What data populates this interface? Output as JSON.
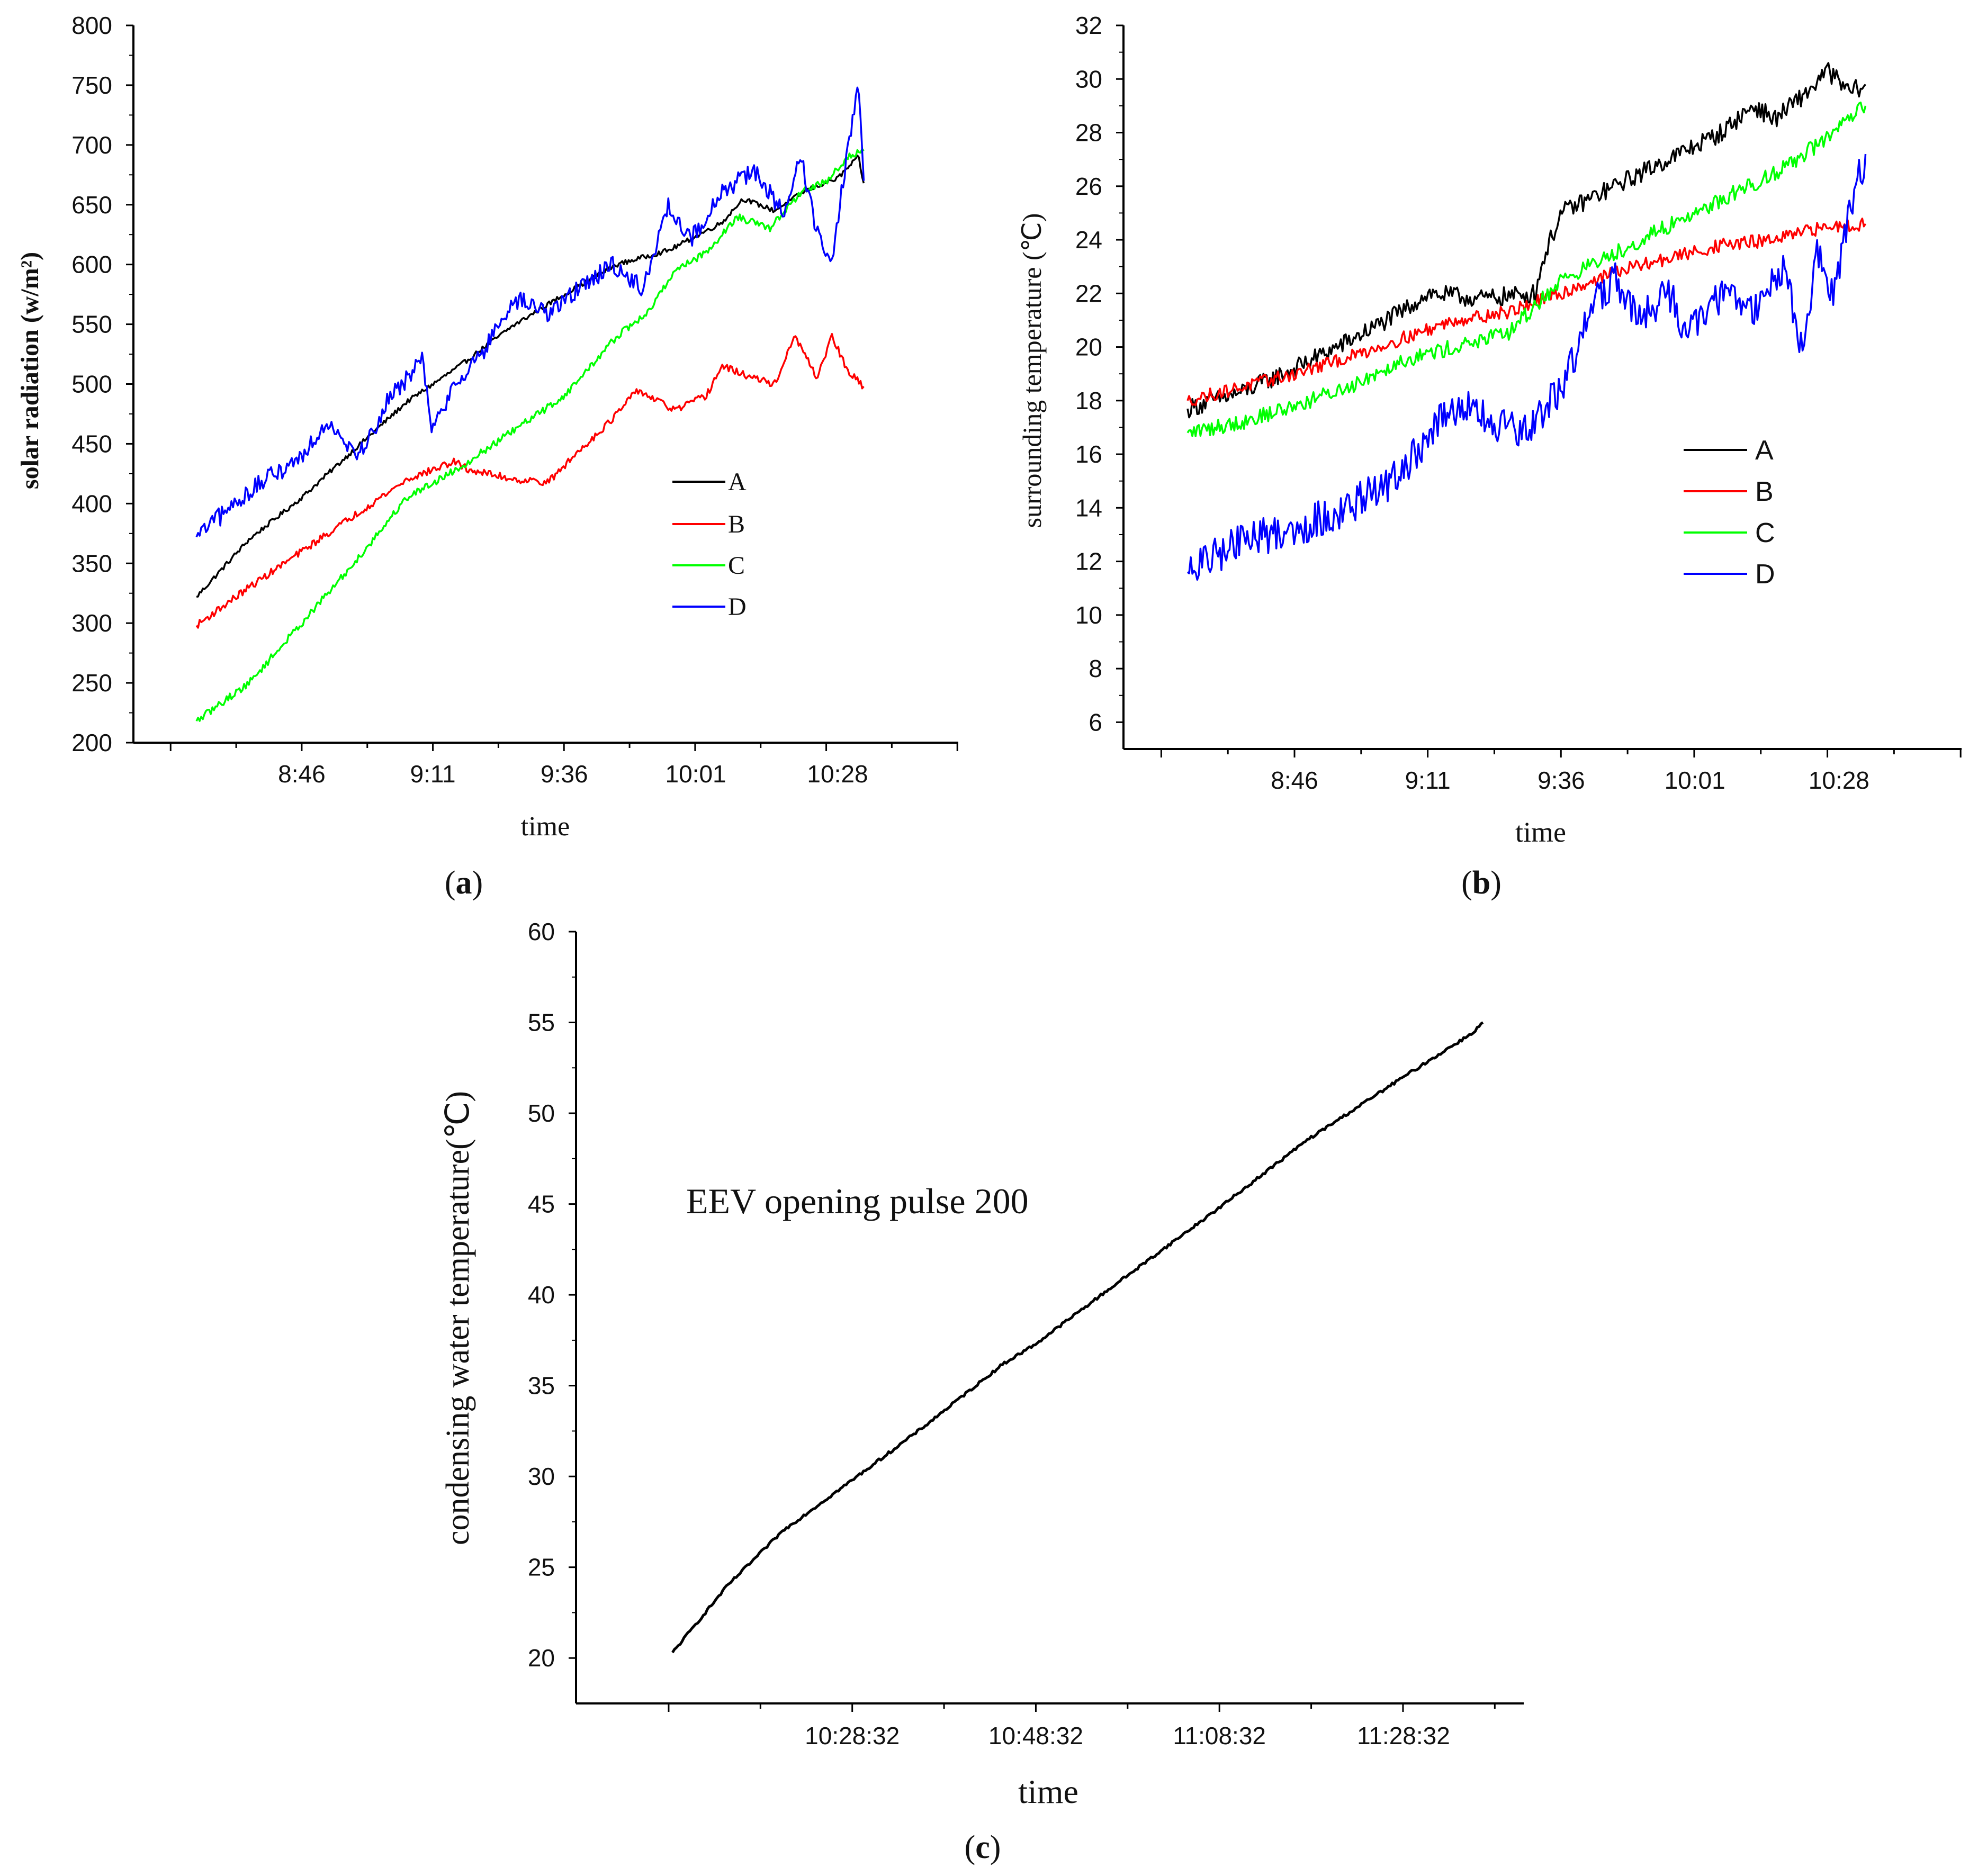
{
  "chart_data": [
    {
      "panel": "(a)",
      "type": "line",
      "xlabel": "time",
      "ylabel": "solar radiation (w/m²)",
      "ylim": [
        200,
        800
      ],
      "yticks": [
        200,
        250,
        300,
        350,
        400,
        450,
        500,
        550,
        600,
        650,
        700,
        750,
        800
      ],
      "xlim": [
        8.233,
        10.85
      ],
      "xtick_labels": [
        {
          "t": 8.767,
          "label": "8:46"
        },
        {
          "t": 9.183,
          "label": "9:11"
        },
        {
          "t": 9.6,
          "label": "9:36"
        },
        {
          "t": 10.017,
          "label": "10:01"
        },
        {
          "t": 10.467,
          "label": "10:28"
        }
      ],
      "legend": [
        "A",
        "B",
        "C",
        "D"
      ],
      "legend_position": "right-middle",
      "series": [
        {
          "name": "A",
          "color": "#000000",
          "noise": 2,
          "points": [
            [
              8.433,
              322
            ],
            [
              8.6,
              370
            ],
            [
              8.767,
              405
            ],
            [
              8.933,
              445
            ],
            [
              9.1,
              485
            ],
            [
              9.267,
              515
            ],
            [
              9.433,
              548
            ],
            [
              9.6,
              575
            ],
            [
              9.767,
              600
            ],
            [
              9.933,
              612
            ],
            [
              10.1,
              635
            ],
            [
              10.167,
              655
            ],
            [
              10.267,
              645
            ],
            [
              10.367,
              662
            ],
            [
              10.467,
              672
            ],
            [
              10.533,
              690
            ],
            [
              10.55,
              668
            ]
          ]
        },
        {
          "name": "B",
          "color": "#ff0000",
          "noise": 3,
          "points": [
            [
              8.433,
              298
            ],
            [
              8.6,
              330
            ],
            [
              8.767,
              360
            ],
            [
              8.933,
              390
            ],
            [
              9.1,
              420
            ],
            [
              9.25,
              435
            ],
            [
              9.3,
              428
            ],
            [
              9.45,
              420
            ],
            [
              9.55,
              418
            ],
            [
              9.65,
              445
            ],
            [
              9.75,
              470
            ],
            [
              9.833,
              495
            ],
            [
              9.95,
              478
            ],
            [
              10.05,
              490
            ],
            [
              10.1,
              515
            ],
            [
              10.2,
              505
            ],
            [
              10.267,
              500
            ],
            [
              10.333,
              540
            ],
            [
              10.4,
              505
            ],
            [
              10.45,
              540
            ],
            [
              10.5,
              510
            ],
            [
              10.55,
              498
            ]
          ]
        },
        {
          "name": "C",
          "color": "#00ff00",
          "noise": 3,
          "points": [
            [
              8.433,
              218
            ],
            [
              8.6,
              250
            ],
            [
              8.767,
              300
            ],
            [
              8.933,
              350
            ],
            [
              9.1,
              405
            ],
            [
              9.267,
              430
            ],
            [
              9.433,
              460
            ],
            [
              9.6,
              490
            ],
            [
              9.767,
              540
            ],
            [
              9.867,
              560
            ],
            [
              9.95,
              595
            ],
            [
              10.05,
              610
            ],
            [
              10.15,
              640
            ],
            [
              10.25,
              630
            ],
            [
              10.35,
              660
            ],
            [
              10.433,
              670
            ],
            [
              10.5,
              690
            ],
            [
              10.55,
              695
            ]
          ]
        },
        {
          "name": "D",
          "color": "#0000ff",
          "noise": 8,
          "points": [
            [
              8.433,
              372
            ],
            [
              8.6,
              410
            ],
            [
              8.767,
              440
            ],
            [
              8.85,
              470
            ],
            [
              8.95,
              440
            ],
            [
              9.05,
              490
            ],
            [
              9.15,
              520
            ],
            [
              9.183,
              460
            ],
            [
              9.25,
              500
            ],
            [
              9.35,
              530
            ],
            [
              9.45,
              570
            ],
            [
              9.55,
              560
            ],
            [
              9.65,
              580
            ],
            [
              9.75,
              600
            ],
            [
              9.85,
              580
            ],
            [
              9.933,
              650
            ],
            [
              10.0,
              620
            ],
            [
              10.1,
              660
            ],
            [
              10.2,
              680
            ],
            [
              10.3,
              640
            ],
            [
              10.35,
              690
            ],
            [
              10.4,
              630
            ],
            [
              10.45,
              600
            ],
            [
              10.5,
              700
            ],
            [
              10.533,
              745
            ],
            [
              10.55,
              670
            ]
          ]
        }
      ]
    },
    {
      "panel": "(b)",
      "type": "line",
      "xlabel": "time",
      "ylabel": "surrounding temperature (℃)",
      "ylim": [
        5,
        32
      ],
      "yticks": [
        6,
        8,
        10,
        12,
        14,
        16,
        18,
        20,
        22,
        24,
        26,
        28,
        30,
        32
      ],
      "xlim": [
        8.233,
        10.85
      ],
      "xtick_labels": [
        {
          "t": 8.767,
          "label": "8:46"
        },
        {
          "t": 9.183,
          "label": "9:11"
        },
        {
          "t": 9.6,
          "label": "9:36"
        },
        {
          "t": 10.017,
          "label": "10:01"
        },
        {
          "t": 10.467,
          "label": "10:28"
        }
      ],
      "legend": [
        "A",
        "B",
        "C",
        "D"
      ],
      "legend_position": "right-middle",
      "series": [
        {
          "name": "A",
          "color": "#000000",
          "noise": 0.35,
          "points": [
            [
              8.433,
              17.7
            ],
            [
              8.6,
              18.3
            ],
            [
              8.767,
              19.2
            ],
            [
              8.933,
              20.2
            ],
            [
              9.1,
              21.3
            ],
            [
              9.183,
              22.0
            ],
            [
              9.35,
              21.8
            ],
            [
              9.517,
              22.0
            ],
            [
              9.55,
              23.5
            ],
            [
              9.6,
              25.0
            ],
            [
              9.767,
              26.0
            ],
            [
              9.933,
              27.0
            ],
            [
              10.1,
              28.0
            ],
            [
              10.2,
              29.0
            ],
            [
              10.267,
              28.5
            ],
            [
              10.367,
              29.5
            ],
            [
              10.433,
              30.3
            ],
            [
              10.5,
              29.5
            ],
            [
              10.55,
              29.8
            ]
          ]
        },
        {
          "name": "B",
          "color": "#ff0000",
          "noise": 0.25,
          "points": [
            [
              8.433,
              18.0
            ],
            [
              8.6,
              18.5
            ],
            [
              8.767,
              19.0
            ],
            [
              8.933,
              19.6
            ],
            [
              9.1,
              20.3
            ],
            [
              9.267,
              21.0
            ],
            [
              9.433,
              21.3
            ],
            [
              9.6,
              22.0
            ],
            [
              9.767,
              22.8
            ],
            [
              9.933,
              23.3
            ],
            [
              10.1,
              23.8
            ],
            [
              10.267,
              24.0
            ],
            [
              10.433,
              24.5
            ],
            [
              10.55,
              24.6
            ]
          ]
        },
        {
          "name": "C",
          "color": "#00ff00",
          "noise": 0.3,
          "points": [
            [
              8.433,
              16.8
            ],
            [
              8.6,
              17.2
            ],
            [
              8.767,
              17.8
            ],
            [
              8.933,
              18.5
            ],
            [
              9.1,
              19.5
            ],
            [
              9.267,
              20.0
            ],
            [
              9.433,
              20.5
            ],
            [
              9.6,
              22.5
            ],
            [
              9.767,
              23.5
            ],
            [
              9.933,
              24.5
            ],
            [
              10.1,
              25.5
            ],
            [
              10.267,
              26.5
            ],
            [
              10.433,
              27.8
            ],
            [
              10.55,
              29.0
            ]
          ]
        },
        {
          "name": "D",
          "color": "#0000ff",
          "noise": 0.7,
          "points": [
            [
              8.433,
              11.6
            ],
            [
              8.6,
              12.8
            ],
            [
              8.767,
              13.2
            ],
            [
              8.933,
              14.0
            ],
            [
              9.1,
              15.2
            ],
            [
              9.2,
              17.0
            ],
            [
              9.3,
              17.8
            ],
            [
              9.4,
              17.0
            ],
            [
              9.5,
              16.8
            ],
            [
              9.6,
              18.5
            ],
            [
              9.7,
              21.5
            ],
            [
              9.767,
              22.5
            ],
            [
              9.85,
              21.0
            ],
            [
              9.933,
              22.0
            ],
            [
              10.0,
              20.5
            ],
            [
              10.1,
              22.0
            ],
            [
              10.2,
              21.5
            ],
            [
              10.3,
              23.0
            ],
            [
              10.35,
              19.8
            ],
            [
              10.4,
              23.5
            ],
            [
              10.45,
              22.0
            ],
            [
              10.5,
              25.0
            ],
            [
              10.55,
              27.2
            ]
          ]
        }
      ]
    },
    {
      "panel": "(c)",
      "type": "line",
      "xlabel": "time",
      "ylabel": "condensing water temperature(℃)",
      "ylim": [
        17.5,
        60
      ],
      "yticks": [
        20,
        25,
        30,
        35,
        40,
        45,
        50,
        55,
        60
      ],
      "xlim": [
        9.975,
        11.694
      ],
      "xtick_labels": [
        {
          "t": 10.476,
          "label": "10:28:32"
        },
        {
          "t": 10.809,
          "label": "10:48:32"
        },
        {
          "t": 11.142,
          "label": "11:08:32"
        },
        {
          "t": 11.476,
          "label": "11:28:32"
        }
      ],
      "annotation": "EEV opening pulse 200",
      "series": [
        {
          "name": "condensing water",
          "color": "#000000",
          "noise": 0.08,
          "points": [
            [
              10.15,
              20.3
            ],
            [
              10.25,
              24.0
            ],
            [
              10.35,
              27.0
            ],
            [
              10.476,
              29.8
            ],
            [
              10.6,
              32.6
            ],
            [
              10.75,
              36.2
            ],
            [
              10.809,
              37.3
            ],
            [
              10.95,
              40.5
            ],
            [
              11.142,
              44.8
            ],
            [
              11.3,
              48.5
            ],
            [
              11.476,
              52.0
            ],
            [
              11.6,
              54.4
            ],
            [
              11.62,
              55.0
            ]
          ]
        }
      ]
    }
  ],
  "panel_labels": {
    "a": "(a)",
    "b": "(b)",
    "c": "(c)"
  },
  "legend_title_order": [
    "A",
    "B",
    "C",
    "D"
  ]
}
